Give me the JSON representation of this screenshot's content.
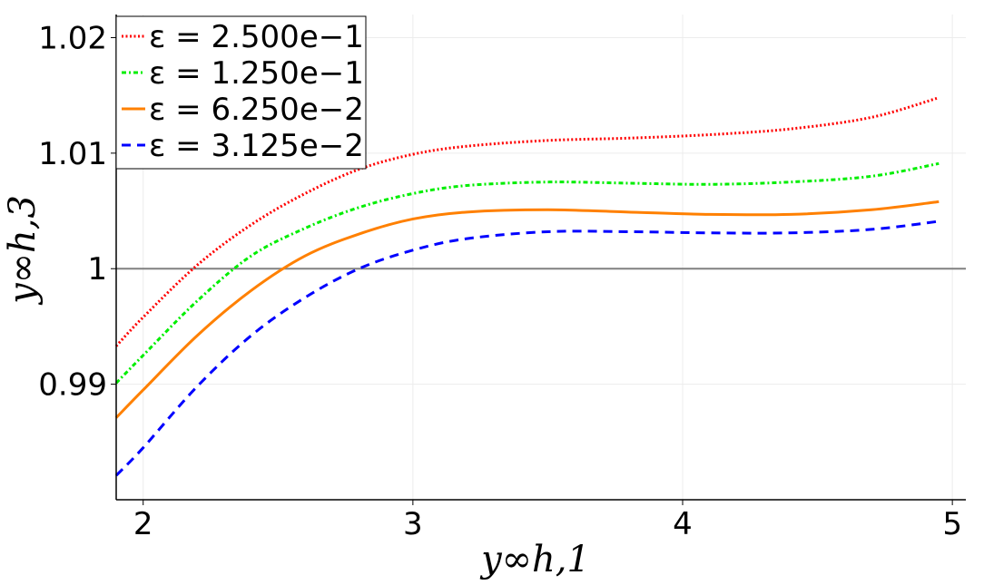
{
  "chart_data": {
    "type": "line",
    "xlabel": "y∞h,1",
    "ylabel": "y∞h,3",
    "xlim": [
      1.9,
      5.05
    ],
    "ylim": [
      0.98,
      1.022
    ],
    "x_ticks": [
      "2",
      "3",
      "4",
      "5"
    ],
    "y_ticks": [
      "0.99",
      "1",
      "1.01",
      "1.02"
    ],
    "reference_line": {
      "y": 1,
      "color": "#808080"
    },
    "grid": true,
    "legend_position": "top-left",
    "series": [
      {
        "name": "ε = 2.500e−1",
        "color": "#ff0000",
        "style": "dotted",
        "x": [
          1.9,
          2.0,
          2.2,
          2.4,
          2.6,
          2.8,
          3.0,
          3.2,
          3.5,
          3.8,
          4.1,
          4.4,
          4.7,
          4.95
        ],
        "y": [
          0.9933,
          0.9958,
          1.0003,
          1.0038,
          1.0065,
          1.0086,
          1.0099,
          1.0106,
          1.0111,
          1.0113,
          1.0116,
          1.0121,
          1.0131,
          1.0148
        ]
      },
      {
        "name": "ε = 1.250e−1",
        "color": "#00ee00",
        "style": "dashdot",
        "x": [
          1.9,
          2.0,
          2.2,
          2.4,
          2.6,
          2.8,
          3.0,
          3.2,
          3.5,
          3.8,
          4.1,
          4.4,
          4.7,
          4.95
        ],
        "y": [
          0.9901,
          0.9925,
          0.9972,
          1.0011,
          1.0035,
          1.0053,
          1.0065,
          1.0072,
          1.0075,
          1.0074,
          1.0073,
          1.0075,
          1.008,
          1.0091
        ]
      },
      {
        "name": "ε = 6.250e−2",
        "color": "#ff8000",
        "style": "solid",
        "x": [
          1.9,
          2.0,
          2.2,
          2.4,
          2.6,
          2.8,
          3.0,
          3.2,
          3.5,
          3.8,
          4.1,
          4.4,
          4.7,
          4.95
        ],
        "y": [
          0.9871,
          0.9895,
          0.9942,
          0.9981,
          1.0011,
          1.003,
          1.0043,
          1.0049,
          1.0051,
          1.0049,
          1.0047,
          1.0047,
          1.0051,
          1.0058
        ]
      },
      {
        "name": "ε = 3.125e−2",
        "color": "#0000ff",
        "style": "dashed",
        "x": [
          1.9,
          2.0,
          2.2,
          2.4,
          2.6,
          2.8,
          3.0,
          3.2,
          3.5,
          3.8,
          4.1,
          4.4,
          4.7,
          4.95
        ],
        "y": [
          0.9821,
          0.9845,
          0.9898,
          0.9942,
          0.9975,
          1.0,
          1.0016,
          1.0026,
          1.0032,
          1.0032,
          1.0031,
          1.0031,
          1.0034,
          1.0041
        ]
      }
    ]
  }
}
